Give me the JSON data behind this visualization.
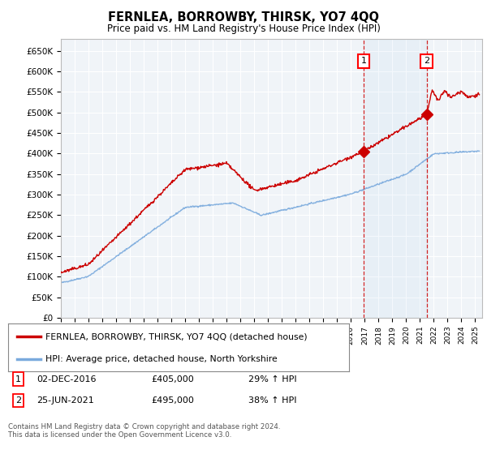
{
  "title": "FERNLEA, BORROWBY, THIRSK, YO7 4QQ",
  "subtitle": "Price paid vs. HM Land Registry's House Price Index (HPI)",
  "background_color": "#ffffff",
  "plot_bg_color": "#f0f4f8",
  "grid_color": "#ffffff",
  "hpi_color": "#7aaadd",
  "price_color": "#cc0000",
  "ylim": [
    0,
    680000
  ],
  "yticks": [
    0,
    50000,
    100000,
    150000,
    200000,
    250000,
    300000,
    350000,
    400000,
    450000,
    500000,
    550000,
    600000,
    650000
  ],
  "sale1_date": 2016.92,
  "sale1_price": 405000,
  "sale1_label": "1",
  "sale2_date": 2021.48,
  "sale2_price": 495000,
  "sale2_label": "2",
  "legend_line1": "FERNLEA, BORROWBY, THIRSK, YO7 4QQ (detached house)",
  "legend_line2": "HPI: Average price, detached house, North Yorkshire",
  "table_row1": [
    "1",
    "02-DEC-2016",
    "£405,000",
    "29% ↑ HPI"
  ],
  "table_row2": [
    "2",
    "25-JUN-2021",
    "£495,000",
    "38% ↑ HPI"
  ],
  "footer": "Contains HM Land Registry data © Crown copyright and database right 2024.\nThis data is licensed under the Open Government Licence v3.0.",
  "xmin": 1995,
  "xmax": 2025.5
}
